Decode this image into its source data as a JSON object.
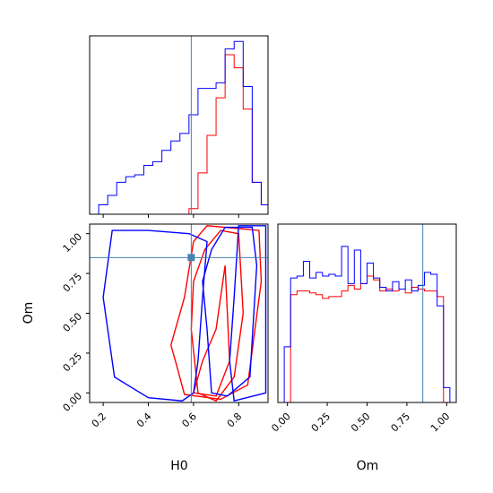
{
  "chart_data": {
    "type": "corner",
    "parameters": [
      "H0",
      "Om"
    ],
    "truth": {
      "H0": 0.59,
      "Om": 0.85
    },
    "colors": {
      "series_a": "#ff0000",
      "series_b": "#0000ff",
      "truth": "#4682b4"
    },
    "axes": {
      "H0": {
        "label": "H0",
        "range": [
          0.14,
          0.93
        ],
        "ticks": [
          0.2,
          0.4,
          0.6,
          0.8
        ],
        "tick_labels": [
          "0.2",
          "0.4",
          "0.6",
          "0.8"
        ]
      },
      "Om": {
        "label": "Om",
        "range": [
          -0.06,
          1.06
        ],
        "ticks": [
          0.0,
          0.25,
          0.5,
          0.75,
          1.0
        ],
        "tick_labels": [
          "0.00",
          "0.25",
          "0.50",
          "0.75",
          "1.00"
        ]
      }
    },
    "hist_H0": {
      "bin_edges": [
        0.14,
        0.18,
        0.22,
        0.26,
        0.3,
        0.34,
        0.38,
        0.42,
        0.46,
        0.5,
        0.54,
        0.58,
        0.62,
        0.66,
        0.7,
        0.74,
        0.78,
        0.82,
        0.86,
        0.9,
        0.93
      ],
      "series": [
        {
          "color": "red",
          "values": [
            0,
            0,
            0,
            0,
            0,
            0,
            0,
            0,
            0,
            0,
            0,
            3,
            22,
            42,
            62,
            85,
            78,
            56,
            17,
            5
          ]
        },
        {
          "color": "blue",
          "values": [
            0,
            5,
            10,
            17,
            20,
            21,
            26,
            28,
            34,
            39,
            43,
            53,
            67,
            67,
            70,
            88,
            92,
            68,
            17,
            5
          ]
        }
      ],
      "ymax": 95
    },
    "hist_Om": {
      "bin_edges": [
        -0.06,
        -0.02,
        0.02,
        0.06,
        0.1,
        0.14,
        0.18,
        0.22,
        0.26,
        0.3,
        0.34,
        0.38,
        0.42,
        0.46,
        0.5,
        0.54,
        0.58,
        0.62,
        0.66,
        0.7,
        0.74,
        0.78,
        0.82,
        0.86,
        0.9,
        0.94,
        0.98,
        1.02,
        1.06
      ],
      "series": [
        {
          "color": "red",
          "values": [
            0,
            0,
            58,
            60,
            60,
            59,
            58,
            56,
            57,
            57,
            60,
            63,
            61,
            64,
            68,
            66,
            60,
            61,
            60,
            61,
            59,
            62,
            61,
            60,
            60,
            57,
            0,
            0
          ]
        },
        {
          "color": "blue",
          "values": [
            0,
            30,
            67,
            68,
            76,
            67,
            70,
            68,
            69,
            68,
            84,
            64,
            82,
            64,
            75,
            67,
            62,
            60,
            65,
            61,
            66,
            60,
            63,
            70,
            69,
            52,
            8,
            0
          ]
        }
      ],
      "ymax": 96
    },
    "contours_2d": [
      {
        "color": "red",
        "levels": [
          [
            [
              0.59,
              0.4
            ],
            [
              0.62,
              0.0
            ],
            [
              0.7,
              -0.05
            ],
            [
              0.78,
              0.1
            ],
            [
              0.82,
              0.5
            ],
            [
              0.8,
              1.0
            ],
            [
              0.72,
              1.02
            ],
            [
              0.65,
              0.9
            ],
            [
              0.6,
              0.7
            ],
            [
              0.59,
              0.4
            ]
          ],
          [
            [
              0.52,
              0.2
            ],
            [
              0.56,
              -0.01
            ],
            [
              0.72,
              -0.04
            ],
            [
              0.84,
              0.05
            ],
            [
              0.9,
              0.7
            ],
            [
              0.89,
              1.02
            ],
            [
              0.66,
              1.05
            ],
            [
              0.6,
              0.95
            ],
            [
              0.56,
              0.6
            ],
            [
              0.5,
              0.3
            ],
            [
              0.52,
              0.2
            ]
          ],
          [
            [
              0.6,
              0.0
            ],
            [
              0.7,
              -0.02
            ],
            [
              0.76,
              0.2
            ],
            [
              0.74,
              0.8
            ],
            [
              0.7,
              0.4
            ],
            [
              0.64,
              0.2
            ],
            [
              0.6,
              0.0
            ]
          ]
        ]
      },
      {
        "color": "blue",
        "levels": [
          [
            [
              0.66,
              0.4
            ],
            [
              0.68,
              0.0
            ],
            [
              0.75,
              -0.02
            ],
            [
              0.85,
              0.1
            ],
            [
              0.88,
              0.8
            ],
            [
              0.86,
              1.04
            ],
            [
              0.74,
              1.04
            ],
            [
              0.68,
              0.9
            ],
            [
              0.64,
              0.7
            ],
            [
              0.66,
              0.4
            ]
          ],
          [
            [
              0.24,
              1.02
            ],
            [
              0.4,
              1.02
            ],
            [
              0.58,
              1.0
            ],
            [
              0.66,
              0.95
            ],
            [
              0.64,
              0.6
            ],
            [
              0.62,
              0.2
            ],
            [
              0.6,
              0.0
            ],
            [
              0.55,
              -0.05
            ],
            [
              0.4,
              -0.03
            ],
            [
              0.25,
              0.1
            ],
            [
              0.2,
              0.6
            ],
            [
              0.24,
              1.02
            ]
          ],
          [
            [
              0.78,
              -0.05
            ],
            [
              0.92,
              0.0
            ],
            [
              0.92,
              1.05
            ],
            [
              0.8,
              1.05
            ],
            [
              0.78,
              0.6
            ],
            [
              0.76,
              0.2
            ],
            [
              0.78,
              -0.05
            ]
          ]
        ]
      }
    ]
  },
  "labels": {
    "h0_xlabel": "H0",
    "om_ylabel": "Om",
    "om_xlabel": "Om"
  }
}
